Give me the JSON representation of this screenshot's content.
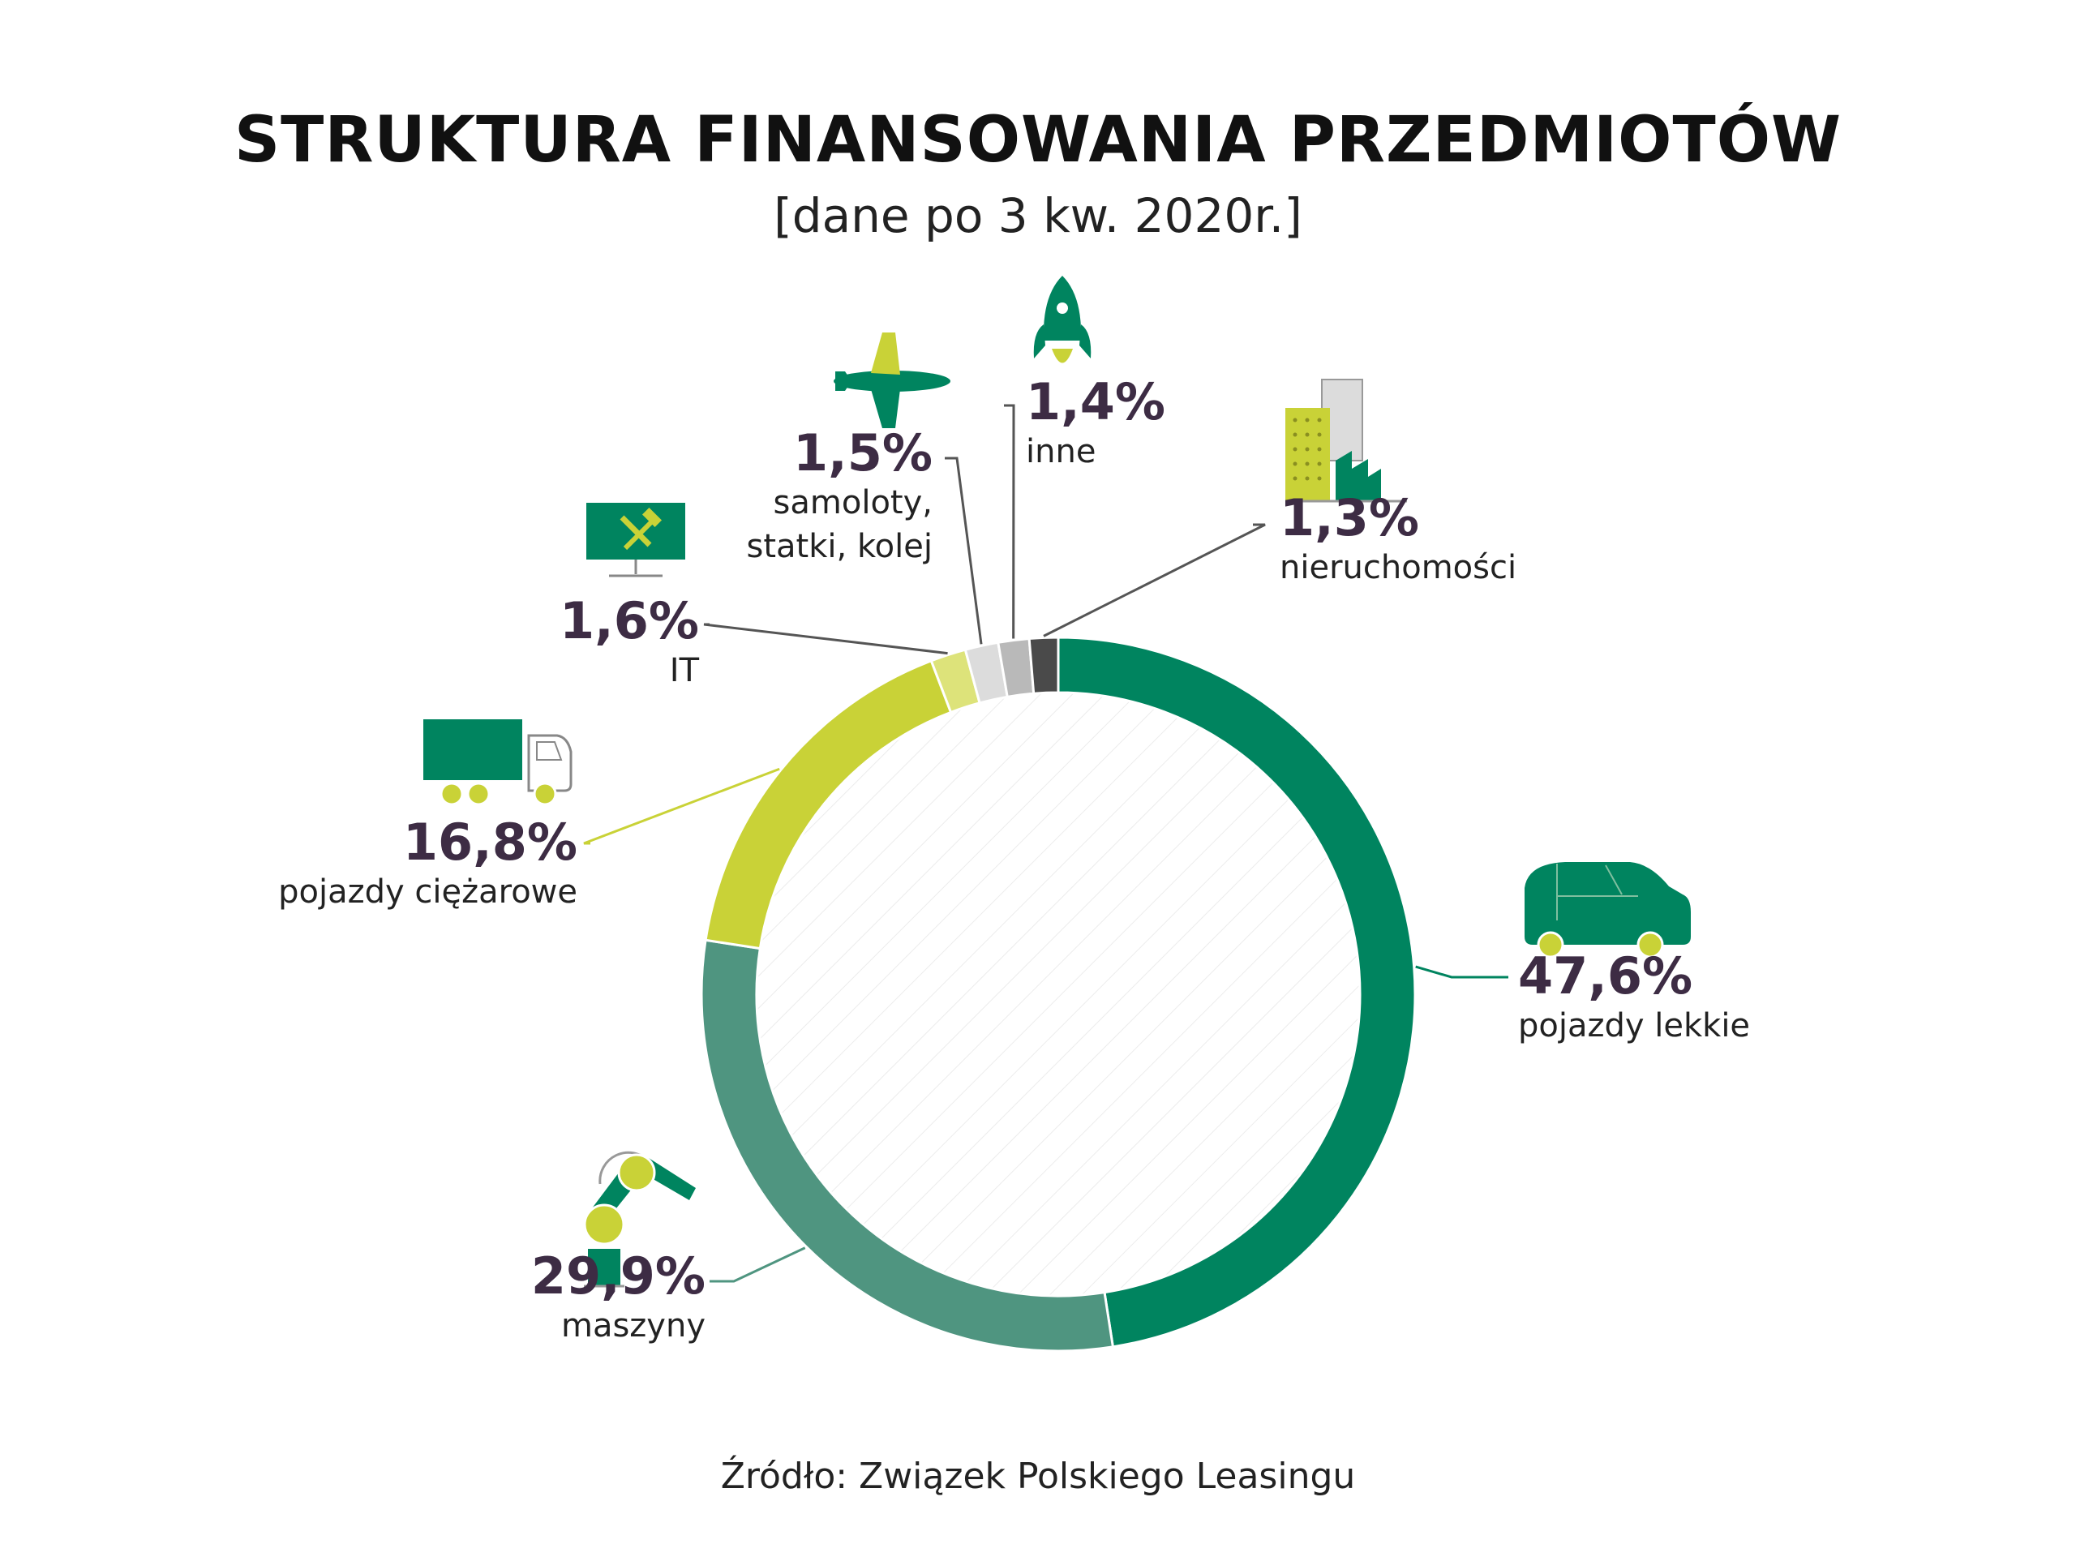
{
  "chart_data": {
    "type": "pie",
    "style": "donut",
    "title": "STRUKTURA FINANSOWANIA PRZEDMIOTÓW",
    "subtitle": "[dane po 3 kw. 2020r.]",
    "source": "Źródło: Związek Polskiego Leasingu",
    "slices": [
      {
        "label": "pojazdy lekkie",
        "value": 47.6,
        "text": "47,6%",
        "color": "#00845f",
        "icon": "car-icon"
      },
      {
        "label": "maszyny",
        "value": 29.9,
        "text": "29,9%",
        "color": "#4f9580",
        "icon": "robot-arm-icon"
      },
      {
        "label": "pojazdy ciężarowe",
        "value": 16.8,
        "text": "16,8%",
        "color": "#c9d237",
        "icon": "truck-icon"
      },
      {
        "label": "IT",
        "value": 1.6,
        "text": "1,6%",
        "color": "#dde37a",
        "icon": "monitor-tools-icon"
      },
      {
        "label": "samoloty,\nstatki, kolej",
        "value": 1.5,
        "text": "1,5%",
        "color": "#dcdcdc",
        "icon": "airplane-icon"
      },
      {
        "label": "inne",
        "value": 1.4,
        "text": "1,4%",
        "color": "#b9b9b9",
        "icon": "rocket-icon"
      },
      {
        "label": "nieruchomości",
        "value": 1.3,
        "text": "1,3%",
        "color": "#4a4a4a",
        "icon": "buildings-icon"
      }
    ]
  }
}
